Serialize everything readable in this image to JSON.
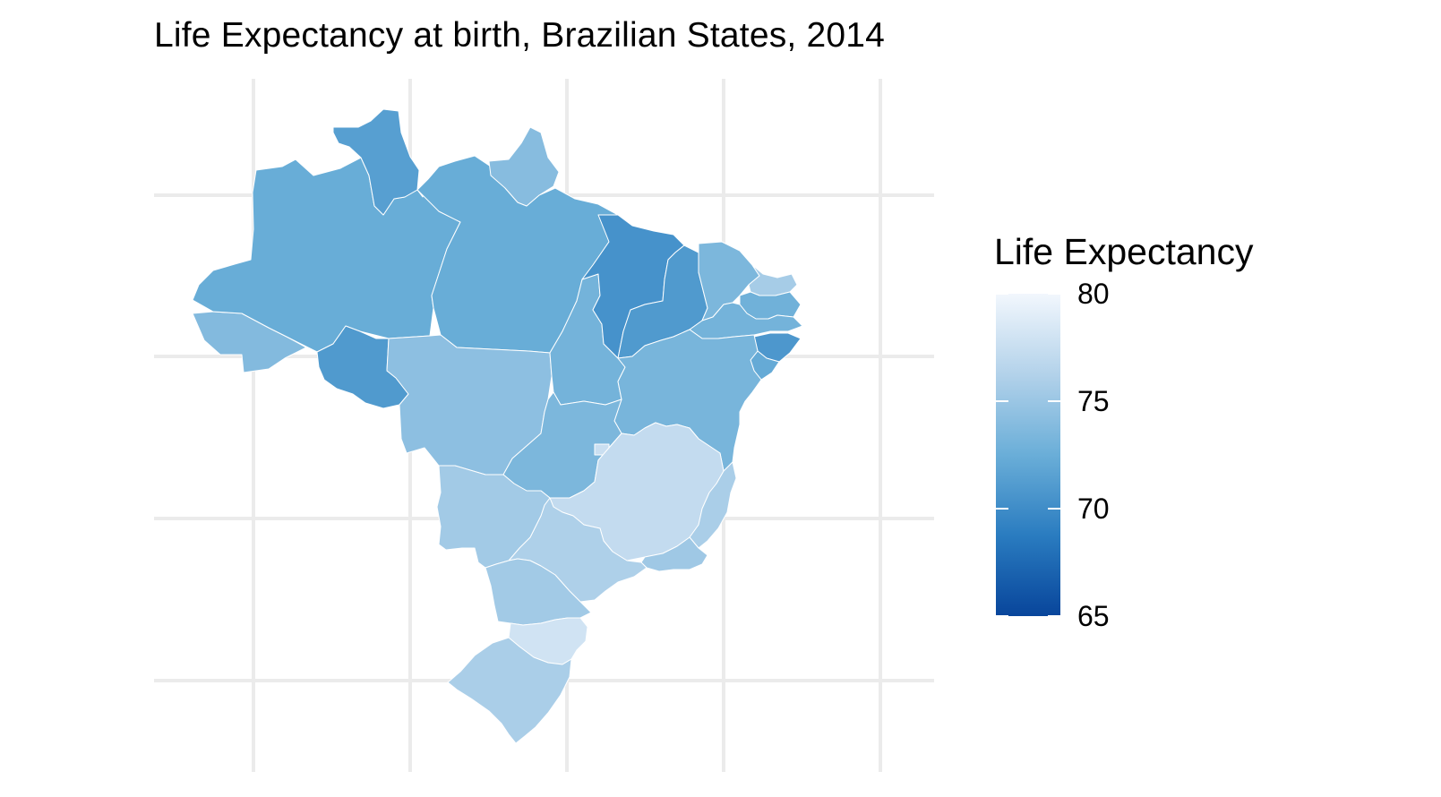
{
  "title": "Life Expectancy at birth, Brazilian States, 2014",
  "legend": {
    "title": "Life Expectancy",
    "ticks": [
      80,
      75,
      70,
      65
    ],
    "range": [
      65,
      80
    ],
    "color_low": "#08459b",
    "color_high": "#f2f7fd"
  },
  "grid": {
    "show": true,
    "color": "#ebebeb"
  },
  "map_data": {
    "type": "choropleth",
    "variable": "Life Expectancy",
    "regions": [
      {
        "name": "AC",
        "value": 73.8
      },
      {
        "name": "AM",
        "value": 72.4
      },
      {
        "name": "RR",
        "value": 71.4
      },
      {
        "name": "PA",
        "value": 72.4
      },
      {
        "name": "AP",
        "value": 74.0
      },
      {
        "name": "RO",
        "value": 71.0
      },
      {
        "name": "MT",
        "value": 74.3
      },
      {
        "name": "TO",
        "value": 73.0
      },
      {
        "name": "MA",
        "value": 70.4
      },
      {
        "name": "PI",
        "value": 71.0
      },
      {
        "name": "CE",
        "value": 73.4
      },
      {
        "name": "RN",
        "value": 75.6
      },
      {
        "name": "PB",
        "value": 72.8
      },
      {
        "name": "PE",
        "value": 73.0
      },
      {
        "name": "AL",
        "value": 70.8
      },
      {
        "name": "SE",
        "value": 72.2
      },
      {
        "name": "BA",
        "value": 73.2
      },
      {
        "name": "GO",
        "value": 73.4
      },
      {
        "name": "DF",
        "value": 77.6
      },
      {
        "name": "MG",
        "value": 77.2
      },
      {
        "name": "ES",
        "value": 75.8
      },
      {
        "name": "RJ",
        "value": 75.2
      },
      {
        "name": "SP",
        "value": 76.0
      },
      {
        "name": "MS",
        "value": 75.4
      },
      {
        "name": "PR",
        "value": 75.4
      },
      {
        "name": "SC",
        "value": 78.0
      },
      {
        "name": "RS",
        "value": 75.8
      }
    ]
  }
}
